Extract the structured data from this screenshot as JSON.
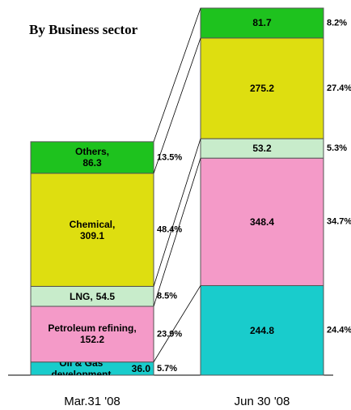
{
  "chart_data": {
    "type": "stacked-bar",
    "title": "By Business sector",
    "categories": [
      "Mar.31 '08",
      "Jun 30 '08"
    ],
    "series": [
      {
        "name": "Oil & Gas development",
        "color": "#19cccc",
        "values": [
          36.0,
          244.8
        ],
        "value_labels": [
          "36.0",
          "244.8"
        ],
        "shares": [
          5.7,
          24.4
        ],
        "share_labels": [
          "5.7%",
          "24.4%"
        ]
      },
      {
        "name": "Petroleum refining,",
        "color": "#f49ac8",
        "values": [
          152.2,
          348.4
        ],
        "shares": [
          23.9,
          34.7
        ],
        "share_labels": [
          "23.9%",
          "34.7%"
        ]
      },
      {
        "name": "LNG,",
        "color": "#c8eccb",
        "values": [
          54.5,
          53.2
        ],
        "shares": [
          8.5,
          5.3
        ],
        "share_labels": [
          "8.5%",
          "5.3%"
        ]
      },
      {
        "name": "Chemical,",
        "color": "#dede10",
        "values": [
          309.1,
          275.2
        ],
        "shares": [
          48.4,
          27.4
        ],
        "share_labels": [
          "48.4%",
          "27.4%"
        ]
      },
      {
        "name": "Others,",
        "color": "#1ec21e",
        "values": [
          86.3,
          81.7
        ],
        "shares": [
          13.5,
          8.2
        ],
        "share_labels": [
          "13.5%",
          "8.2%"
        ]
      }
    ]
  }
}
